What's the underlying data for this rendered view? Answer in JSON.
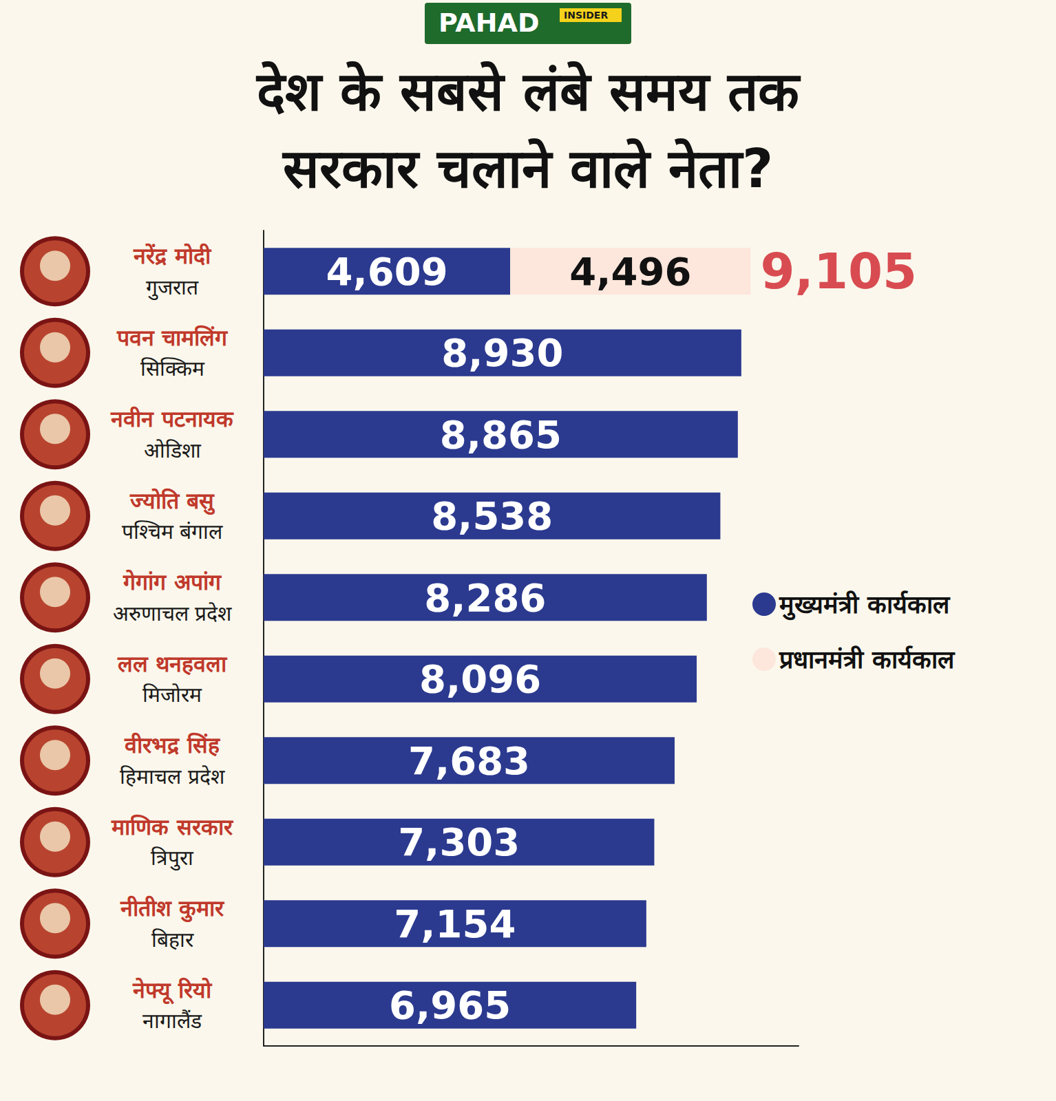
{
  "chart_data": {
    "type": "bar",
    "title": "देश के सबसे लंबे समय तक\nसरकार चलाने वाले नेता?",
    "annotations": [
      {
        "text": "PAHAD"
      },
      {
        "text": "INSIDER"
      }
    ],
    "orientation": "horizontal",
    "stacked": true,
    "data_labels": true,
    "grid": false,
    "legend": "right",
    "tick_labels": "y",
    "categories": [
      "नरेंद्र मोदी",
      "पवन चामलिंग",
      "नवीन पटनायक",
      "ज्योति बसु",
      "गेगांग अपांग",
      "लल थनहवला",
      "वीरभद्र सिंह",
      "माणिक सरकार",
      "नीतीश कुमार",
      "नेफ्यू रियो"
    ],
    "category_subtitles": [
      "गुजरात",
      "सिक्किम",
      "ओडिशा",
      "पश्चिम बंगाल",
      "अरुणाचल प्रदेश",
      "मिजोरम",
      "हिमाचल प्रदेश",
      "त्रिपुरा",
      "बिहार",
      "नागालैंड"
    ],
    "series": [
      {
        "name": "मुख्यमंत्री कार्यकाल",
        "color": "#2b3a8f",
        "values": [
          4609,
          8930,
          8865,
          8538,
          8286,
          8096,
          7683,
          7303,
          7154,
          6965
        ],
        "value_labels": [
          "4,609",
          "8,930",
          "8,865",
          "8,538",
          "8,286",
          "8,096",
          "7,683",
          "7,303",
          "7,154",
          "6,965"
        ]
      },
      {
        "name": "प्रधानमंत्री कार्यकाल",
        "color": "#fde6dc",
        "values": [
          4496,
          null,
          null,
          null,
          null,
          null,
          null,
          null,
          null,
          null
        ],
        "value_labels": [
          "4,496",
          null,
          null,
          null,
          null,
          null,
          null,
          null,
          null,
          null
        ]
      }
    ],
    "totals": [
      {
        "category": "नरेंद्र मोदी",
        "value": 9105,
        "label": "9,105",
        "color": "#d0202a"
      }
    ],
    "xlim": [
      0,
      10000
    ],
    "xticks": []
  }
}
